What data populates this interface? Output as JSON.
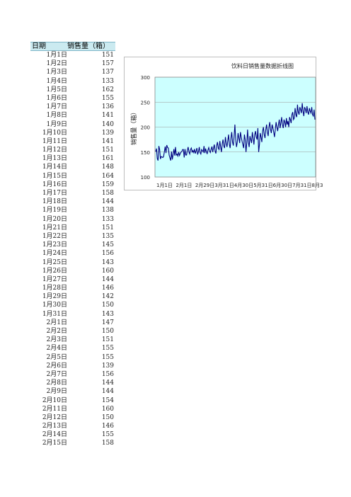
{
  "table": {
    "headers": [
      "日期",
      "销售量（箱）"
    ],
    "rows": [
      [
        "1月1日",
        151
      ],
      [
        "1月2日",
        157
      ],
      [
        "1月3日",
        137
      ],
      [
        "1月4日",
        133
      ],
      [
        "1月5日",
        162
      ],
      [
        "1月6日",
        155
      ],
      [
        "1月7日",
        136
      ],
      [
        "1月8日",
        141
      ],
      [
        "1月9日",
        140
      ],
      [
        "1月10日",
        139
      ],
      [
        "1月11日",
        141
      ],
      [
        "1月12日",
        151
      ],
      [
        "1月13日",
        161
      ],
      [
        "1月14日",
        148
      ],
      [
        "1月15日",
        164
      ],
      [
        "1月16日",
        159
      ],
      [
        "1月17日",
        158
      ],
      [
        "1月18日",
        144
      ],
      [
        "1月19日",
        138
      ],
      [
        "1月20日",
        133
      ],
      [
        "1月21日",
        151
      ],
      [
        "1月22日",
        135
      ],
      [
        "1月23日",
        145
      ],
      [
        "1月24日",
        156
      ],
      [
        "1月25日",
        143
      ],
      [
        "1月26日",
        160
      ],
      [
        "1月27日",
        144
      ],
      [
        "1月28日",
        146
      ],
      [
        "1月29日",
        142
      ],
      [
        "1月30日",
        150
      ],
      [
        "1月31日",
        143
      ],
      [
        "2月1日",
        147
      ],
      [
        "2月2日",
        150
      ],
      [
        "2月3日",
        151
      ],
      [
        "2月4日",
        155
      ],
      [
        "2月5日",
        155
      ],
      [
        "2月6日",
        139
      ],
      [
        "2月7日",
        156
      ],
      [
        "2月8日",
        144
      ],
      [
        "2月9日",
        144
      ],
      [
        "2月10日",
        154
      ],
      [
        "2月11日",
        160
      ],
      [
        "2月12日",
        150
      ],
      [
        "2月13日",
        146
      ],
      [
        "2月14日",
        155
      ],
      [
        "2月15日",
        158
      ]
    ]
  },
  "chart_data": {
    "type": "line",
    "title": "饮料日销售量数据折线图",
    "ylabel": "销售量（箱）",
    "xlabel": "",
    "ylim": [
      100,
      300
    ],
    "yticks": [
      100,
      150,
      200,
      250,
      300
    ],
    "xticklabels": [
      "1月1日",
      "2月1日",
      "2月29日",
      "3月31日",
      "4月30日",
      "5月31日",
      "6月30日",
      "7月31日",
      "8月3"
    ],
    "grid": true,
    "colors": {
      "plot_bg": "#ccffff",
      "line": "#000080"
    },
    "series": [
      {
        "values": [
          151,
          157,
          137,
          133,
          162,
          155,
          136,
          141,
          140,
          139,
          141,
          151,
          161,
          148,
          164,
          159,
          158,
          144,
          138,
          133,
          151,
          135,
          145,
          156,
          143,
          160,
          144,
          146,
          142,
          150,
          143,
          147,
          150,
          151,
          155,
          155,
          139,
          156,
          144,
          144,
          154,
          160,
          150,
          146,
          155,
          158,
          150,
          153,
          149,
          156,
          147,
          152,
          158,
          145,
          151,
          160,
          149,
          146,
          155,
          153,
          150,
          162,
          148,
          157,
          151,
          146,
          154,
          159,
          152,
          149,
          156,
          161,
          150,
          158,
          165,
          152,
          147,
          163,
          170,
          158,
          155,
          172,
          160,
          150,
          166,
          175,
          162,
          158,
          180,
          168,
          160,
          173,
          185,
          165,
          158,
          178,
          190,
          170,
          163,
          182,
          205,
          175,
          160,
          170,
          188,
          178,
          168,
          190,
          180,
          172,
          165,
          158,
          185,
          175,
          150,
          168,
          195,
          170,
          160,
          182,
          175,
          168,
          190,
          178,
          165,
          185,
          192,
          180,
          175,
          198,
          150,
          165,
          188,
          180,
          170,
          192,
          200,
          185,
          178,
          195,
          205,
          190,
          182,
          200,
          210,
          195,
          188,
          205,
          198,
          190,
          180,
          195,
          210,
          200,
          192,
          205,
          215,
          198,
          208,
          220,
          205,
          198,
          215,
          210,
          200,
          218,
          205,
          212,
          200,
          220,
          215,
          208,
          225,
          230,
          215,
          218,
          238,
          225,
          220,
          245,
          230,
          225,
          240,
          235,
          228,
          248,
          232,
          222,
          240,
          236,
          228,
          242,
          230,
          225,
          238,
          232,
          228,
          240,
          225,
          222,
          235,
          215
        ]
      }
    ]
  }
}
